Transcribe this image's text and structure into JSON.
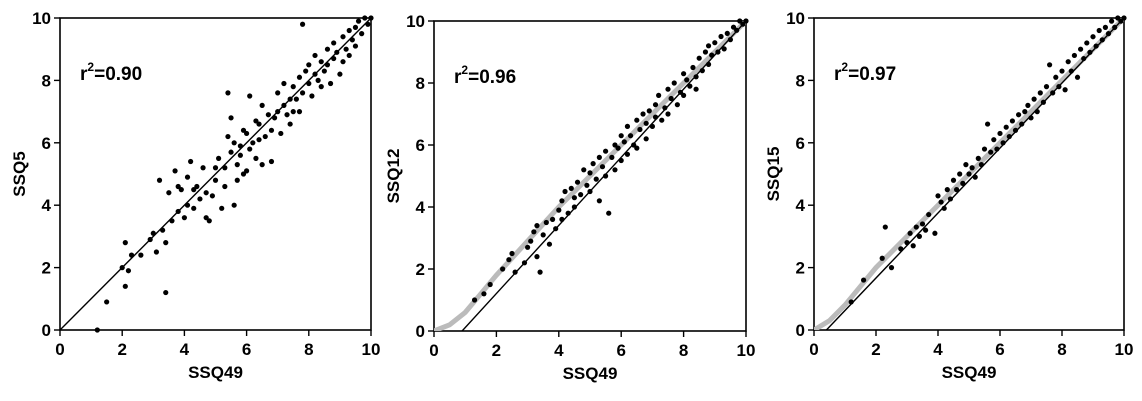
{
  "chart_data": [
    {
      "type": "scatter",
      "xlabel": "SSQ49",
      "ylabel": "SSQ5",
      "xlim": [
        0,
        10
      ],
      "ylim": [
        0,
        10
      ],
      "xticks": [
        "0",
        "2",
        "4",
        "6",
        "8",
        "10"
      ],
      "yticks": [
        "0",
        "2",
        "4",
        "6",
        "8",
        "10"
      ],
      "annotation": {
        "prefix": "r",
        "sup": "2",
        "value": "=0.90"
      },
      "fit_line": {
        "color": "#000000",
        "points": [
          [
            0,
            0
          ],
          [
            10,
            10
          ]
        ]
      },
      "points": [
        [
          1.2,
          0.0
        ],
        [
          1.5,
          0.9
        ],
        [
          2.0,
          2.0
        ],
        [
          2.1,
          1.4
        ],
        [
          2.1,
          2.8
        ],
        [
          2.3,
          2.4
        ],
        [
          2.2,
          1.9
        ],
        [
          2.6,
          2.4
        ],
        [
          2.9,
          2.9
        ],
        [
          3.0,
          3.1
        ],
        [
          3.1,
          2.5
        ],
        [
          3.2,
          4.8
        ],
        [
          3.3,
          3.2
        ],
        [
          3.4,
          1.2
        ],
        [
          3.4,
          2.8
        ],
        [
          3.5,
          4.4
        ],
        [
          3.6,
          3.5
        ],
        [
          3.7,
          5.1
        ],
        [
          3.8,
          3.8
        ],
        [
          3.8,
          4.6
        ],
        [
          3.9,
          4.5
        ],
        [
          4.0,
          3.6
        ],
        [
          4.1,
          4.0
        ],
        [
          4.1,
          4.9
        ],
        [
          4.2,
          5.4
        ],
        [
          4.3,
          4.5
        ],
        [
          4.3,
          3.9
        ],
        [
          4.4,
          4.6
        ],
        [
          4.5,
          4.2
        ],
        [
          4.6,
          5.2
        ],
        [
          4.7,
          4.4
        ],
        [
          4.7,
          3.6
        ],
        [
          4.8,
          3.5
        ],
        [
          4.9,
          4.3
        ],
        [
          5.0,
          5.2
        ],
        [
          5.0,
          4.8
        ],
        [
          5.1,
          5.5
        ],
        [
          5.2,
          3.9
        ],
        [
          5.3,
          5.2
        ],
        [
          5.3,
          4.6
        ],
        [
          5.4,
          6.2
        ],
        [
          5.4,
          7.6
        ],
        [
          5.5,
          5.7
        ],
        [
          5.5,
          6.8
        ],
        [
          5.6,
          6.0
        ],
        [
          5.6,
          4.0
        ],
        [
          5.7,
          4.8
        ],
        [
          5.7,
          5.3
        ],
        [
          5.8,
          5.6
        ],
        [
          5.8,
          5.9
        ],
        [
          5.9,
          5.0
        ],
        [
          5.9,
          6.4
        ],
        [
          6.0,
          6.3
        ],
        [
          6.0,
          5.1
        ],
        [
          6.1,
          7.5
        ],
        [
          6.1,
          5.8
        ],
        [
          6.2,
          6.0
        ],
        [
          6.3,
          5.5
        ],
        [
          6.3,
          6.7
        ],
        [
          6.4,
          6.1
        ],
        [
          6.4,
          6.6
        ],
        [
          6.5,
          5.3
        ],
        [
          6.5,
          7.2
        ],
        [
          6.6,
          6.2
        ],
        [
          6.7,
          6.9
        ],
        [
          6.8,
          6.4
        ],
        [
          6.8,
          5.4
        ],
        [
          6.9,
          6.8
        ],
        [
          7.0,
          7.0
        ],
        [
          7.0,
          7.6
        ],
        [
          7.1,
          6.3
        ],
        [
          7.2,
          7.2
        ],
        [
          7.2,
          7.9
        ],
        [
          7.3,
          6.9
        ],
        [
          7.4,
          7.4
        ],
        [
          7.4,
          6.6
        ],
        [
          7.5,
          7.8
        ],
        [
          7.5,
          7.0
        ],
        [
          7.6,
          7.4
        ],
        [
          7.7,
          8.1
        ],
        [
          7.7,
          7.0
        ],
        [
          7.8,
          7.6
        ],
        [
          7.8,
          9.8
        ],
        [
          7.9,
          8.3
        ],
        [
          8.0,
          7.9
        ],
        [
          8.0,
          8.5
        ],
        [
          8.1,
          7.5
        ],
        [
          8.2,
          8.2
        ],
        [
          8.2,
          8.8
        ],
        [
          8.3,
          8.0
        ],
        [
          8.4,
          8.6
        ],
        [
          8.4,
          7.8
        ],
        [
          8.5,
          8.3
        ],
        [
          8.6,
          9.0
        ],
        [
          8.6,
          8.5
        ],
        [
          8.7,
          7.9
        ],
        [
          8.8,
          8.7
        ],
        [
          8.8,
          9.2
        ],
        [
          8.9,
          8.9
        ],
        [
          9.0,
          8.2
        ],
        [
          9.1,
          9.4
        ],
        [
          9.1,
          8.6
        ],
        [
          9.2,
          9.0
        ],
        [
          9.3,
          9.6
        ],
        [
          9.3,
          8.8
        ],
        [
          9.4,
          9.3
        ],
        [
          9.5,
          9.7
        ],
        [
          9.5,
          9.1
        ],
        [
          9.6,
          9.9
        ],
        [
          9.7,
          9.5
        ],
        [
          9.8,
          10.0
        ],
        [
          9.9,
          9.8
        ],
        [
          10.0,
          10.0
        ]
      ]
    },
    {
      "type": "scatter",
      "xlabel": "SSQ49",
      "ylabel": "SSQ12",
      "xlim": [
        0,
        10
      ],
      "ylim": [
        0,
        10
      ],
      "xticks": [
        "0",
        "2",
        "4",
        "6",
        "8",
        "10"
      ],
      "yticks": [
        "0",
        "2",
        "4",
        "6",
        "8",
        "10"
      ],
      "annotation": {
        "prefix": "r",
        "sup": "2",
        "value": "=0.96"
      },
      "fit_curve": {
        "color": "#bbbbbb",
        "points": [
          [
            0,
            0
          ],
          [
            0.5,
            0.2
          ],
          [
            1,
            0.6
          ],
          [
            1.5,
            1.2
          ],
          [
            2,
            1.8
          ],
          [
            3,
            2.9
          ],
          [
            4,
            4.0
          ],
          [
            5,
            5.0
          ],
          [
            6,
            6.0
          ],
          [
            7,
            7.0
          ],
          [
            8,
            8.0
          ],
          [
            9,
            9.0
          ],
          [
            10,
            10.0
          ]
        ]
      },
      "fit_line": {
        "color": "#000000",
        "points": [
          [
            0.9,
            0
          ],
          [
            10,
            10
          ]
        ]
      },
      "points": [
        [
          1.3,
          1.0
        ],
        [
          1.6,
          1.2
        ],
        [
          1.8,
          1.5
        ],
        [
          2.2,
          2.0
        ],
        [
          2.4,
          2.3
        ],
        [
          2.5,
          2.5
        ],
        [
          2.6,
          1.9
        ],
        [
          2.9,
          2.2
        ],
        [
          3.0,
          2.7
        ],
        [
          3.1,
          2.9
        ],
        [
          3.2,
          3.2
        ],
        [
          3.3,
          3.4
        ],
        [
          3.3,
          2.4
        ],
        [
          3.4,
          1.9
        ],
        [
          3.5,
          3.1
        ],
        [
          3.6,
          3.5
        ],
        [
          3.7,
          2.8
        ],
        [
          3.8,
          3.6
        ],
        [
          3.9,
          3.3
        ],
        [
          4.0,
          3.9
        ],
        [
          4.1,
          4.2
        ],
        [
          4.1,
          3.6
        ],
        [
          4.2,
          4.5
        ],
        [
          4.3,
          3.8
        ],
        [
          4.4,
          4.6
        ],
        [
          4.5,
          4.3
        ],
        [
          4.5,
          4.0
        ],
        [
          4.6,
          4.8
        ],
        [
          4.7,
          4.4
        ],
        [
          4.8,
          5.2
        ],
        [
          4.9,
          4.7
        ],
        [
          5.0,
          5.1
        ],
        [
          5.0,
          4.5
        ],
        [
          5.1,
          5.4
        ],
        [
          5.2,
          4.9
        ],
        [
          5.3,
          5.6
        ],
        [
          5.3,
          4.2
        ],
        [
          5.4,
          5.3
        ],
        [
          5.5,
          5.8
        ],
        [
          5.5,
          5.0
        ],
        [
          5.6,
          3.8
        ],
        [
          5.7,
          5.6
        ],
        [
          5.8,
          6.0
        ],
        [
          5.8,
          5.2
        ],
        [
          5.9,
          5.9
        ],
        [
          6.0,
          6.3
        ],
        [
          6.0,
          5.5
        ],
        [
          6.1,
          6.1
        ],
        [
          6.2,
          6.6
        ],
        [
          6.2,
          5.7
        ],
        [
          6.3,
          6.3
        ],
        [
          6.4,
          6.0
        ],
        [
          6.5,
          6.8
        ],
        [
          6.5,
          5.9
        ],
        [
          6.6,
          6.5
        ],
        [
          6.7,
          7.0
        ],
        [
          6.8,
          6.2
        ],
        [
          6.8,
          6.7
        ],
        [
          6.9,
          7.1
        ],
        [
          7.0,
          6.6
        ],
        [
          7.1,
          7.3
        ],
        [
          7.1,
          6.9
        ],
        [
          7.2,
          7.6
        ],
        [
          7.3,
          6.8
        ],
        [
          7.4,
          7.2
        ],
        [
          7.5,
          7.8
        ],
        [
          7.5,
          7.0
        ],
        [
          7.6,
          7.5
        ],
        [
          7.7,
          8.0
        ],
        [
          7.8,
          7.3
        ],
        [
          7.9,
          7.7
        ],
        [
          8.0,
          8.3
        ],
        [
          8.0,
          7.6
        ],
        [
          8.1,
          8.1
        ],
        [
          8.2,
          7.9
        ],
        [
          8.3,
          8.5
        ],
        [
          8.4,
          8.2
        ],
        [
          8.4,
          7.8
        ],
        [
          8.5,
          8.8
        ],
        [
          8.6,
          8.4
        ],
        [
          8.7,
          9.0
        ],
        [
          8.8,
          8.6
        ],
        [
          8.8,
          9.2
        ],
        [
          8.9,
          8.9
        ],
        [
          9.0,
          9.3
        ],
        [
          9.1,
          9.0
        ],
        [
          9.2,
          9.5
        ],
        [
          9.3,
          9.1
        ],
        [
          9.4,
          9.6
        ],
        [
          9.5,
          9.4
        ],
        [
          9.6,
          9.8
        ],
        [
          9.7,
          9.7
        ],
        [
          9.8,
          10.0
        ],
        [
          9.9,
          9.9
        ],
        [
          10.0,
          10.0
        ]
      ]
    },
    {
      "type": "scatter",
      "xlabel": "SSQ49",
      "ylabel": "SSQ15",
      "xlim": [
        0,
        10
      ],
      "ylim": [
        0,
        10
      ],
      "xticks": [
        "0",
        "2",
        "4",
        "6",
        "8",
        "10"
      ],
      "yticks": [
        "0",
        "2",
        "4",
        "6",
        "8",
        "10"
      ],
      "annotation": {
        "prefix": "r",
        "sup": "2",
        "value": "=0.97"
      },
      "fit_curve": {
        "color": "#bbbbbb",
        "points": [
          [
            0,
            0
          ],
          [
            0.5,
            0.3
          ],
          [
            1,
            0.8
          ],
          [
            1.5,
            1.4
          ],
          [
            2,
            2.0
          ],
          [
            3,
            3.0
          ],
          [
            4,
            4.0
          ],
          [
            5,
            5.0
          ],
          [
            6,
            6.0
          ],
          [
            7,
            7.0
          ],
          [
            8,
            8.0
          ],
          [
            9,
            9.0
          ],
          [
            10,
            10.0
          ]
        ]
      },
      "fit_line": {
        "color": "#000000",
        "points": [
          [
            0.4,
            0
          ],
          [
            10,
            10
          ]
        ]
      },
      "points": [
        [
          1.2,
          0.9
        ],
        [
          1.6,
          1.6
        ],
        [
          2.2,
          2.3
        ],
        [
          2.3,
          3.3
        ],
        [
          2.5,
          2.0
        ],
        [
          2.8,
          2.6
        ],
        [
          3.0,
          2.8
        ],
        [
          3.1,
          3.1
        ],
        [
          3.2,
          2.7
        ],
        [
          3.3,
          3.3
        ],
        [
          3.4,
          3.0
        ],
        [
          3.5,
          3.4
        ],
        [
          3.6,
          3.2
        ],
        [
          3.7,
          3.7
        ],
        [
          3.9,
          3.1
        ],
        [
          4.0,
          4.3
        ],
        [
          4.1,
          4.1
        ],
        [
          4.2,
          3.9
        ],
        [
          4.3,
          4.5
        ],
        [
          4.4,
          4.2
        ],
        [
          4.5,
          4.8
        ],
        [
          4.6,
          4.5
        ],
        [
          4.7,
          5.0
        ],
        [
          4.8,
          4.7
        ],
        [
          4.9,
          5.3
        ],
        [
          5.0,
          5.0
        ],
        [
          5.1,
          5.2
        ],
        [
          5.2,
          4.9
        ],
        [
          5.3,
          5.5
        ],
        [
          5.4,
          5.3
        ],
        [
          5.5,
          5.8
        ],
        [
          5.6,
          6.6
        ],
        [
          5.7,
          5.7
        ],
        [
          5.8,
          6.1
        ],
        [
          5.9,
          5.8
        ],
        [
          6.0,
          6.3
        ],
        [
          6.1,
          6.0
        ],
        [
          6.2,
          6.5
        ],
        [
          6.3,
          6.2
        ],
        [
          6.4,
          6.7
        ],
        [
          6.5,
          6.4
        ],
        [
          6.6,
          6.9
        ],
        [
          6.7,
          6.6
        ],
        [
          6.8,
          7.0
        ],
        [
          6.9,
          7.2
        ],
        [
          7.0,
          6.8
        ],
        [
          7.1,
          7.4
        ],
        [
          7.2,
          7.0
        ],
        [
          7.3,
          7.6
        ],
        [
          7.4,
          7.3
        ],
        [
          7.5,
          7.8
        ],
        [
          7.6,
          8.5
        ],
        [
          7.7,
          7.6
        ],
        [
          7.8,
          8.1
        ],
        [
          7.9,
          7.8
        ],
        [
          8.0,
          8.3
        ],
        [
          8.1,
          7.7
        ],
        [
          8.2,
          8.6
        ],
        [
          8.3,
          8.3
        ],
        [
          8.4,
          8.8
        ],
        [
          8.5,
          8.1
        ],
        [
          8.6,
          9.0
        ],
        [
          8.7,
          8.7
        ],
        [
          8.8,
          9.2
        ],
        [
          8.9,
          8.9
        ],
        [
          9.0,
          9.4
        ],
        [
          9.1,
          9.1
        ],
        [
          9.2,
          9.6
        ],
        [
          9.3,
          9.3
        ],
        [
          9.4,
          9.7
        ],
        [
          9.5,
          9.5
        ],
        [
          9.6,
          9.9
        ],
        [
          9.7,
          9.7
        ],
        [
          9.8,
          10.0
        ],
        [
          9.9,
          9.9
        ],
        [
          10.0,
          10.0
        ]
      ]
    }
  ]
}
